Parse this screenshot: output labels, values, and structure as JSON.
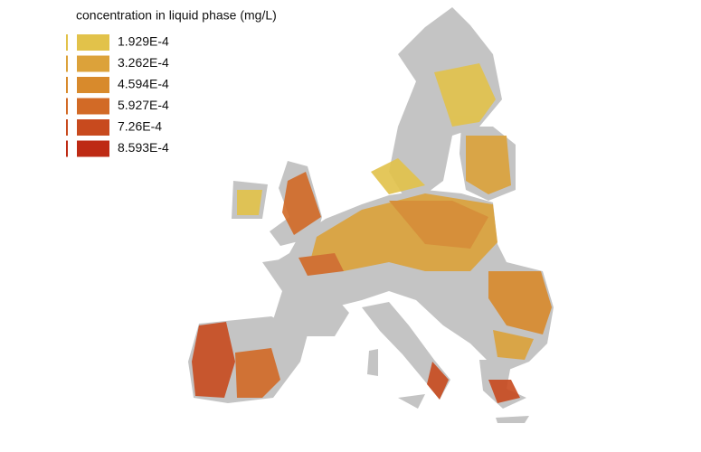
{
  "legend": {
    "title": "concentration in liquid phase (mg/L)",
    "items": [
      {
        "label": "1.929E-4",
        "color": "#e2c24a"
      },
      {
        "label": "3.262E-4",
        "color": "#dca23a"
      },
      {
        "label": "4.594E-4",
        "color": "#d88a2c"
      },
      {
        "label": "5.927E-4",
        "color": "#d26a26"
      },
      {
        "label": "7.26E-4",
        "color": "#c84a1e"
      },
      {
        "label": "8.593E-4",
        "color": "#be2a14"
      }
    ]
  }
}
